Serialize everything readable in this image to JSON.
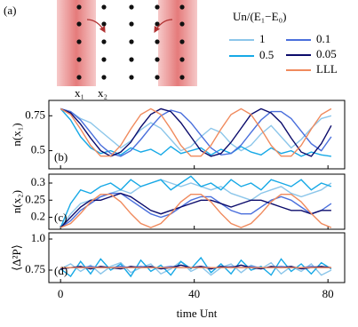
{
  "diagram": {
    "label": "(a)",
    "sites": [
      "x₁",
      "x₂"
    ]
  },
  "chart_data": [
    {
      "type": "line",
      "panel_label": "(b)",
      "ylabel": "n(x₁)",
      "legend_title": "Un/(E₁−E₀)",
      "x": [
        0,
        3,
        6,
        9,
        12,
        15,
        18,
        21,
        24,
        27,
        30,
        33,
        36,
        39,
        42,
        45,
        48,
        51,
        54,
        57,
        60,
        63,
        66,
        69,
        72,
        75,
        78,
        81
      ],
      "xlim": [
        -3.5,
        85
      ],
      "xticks": [
        0,
        40,
        80
      ],
      "ylim": [
        0.37,
        0.86
      ],
      "yticks": [
        0.5,
        0.75
      ],
      "series": [
        {
          "name": "1",
          "color": "#8cc6ea",
          "values": [
            0.8,
            0.78,
            0.73,
            0.7,
            0.64,
            0.58,
            0.52,
            0.57,
            0.65,
            0.7,
            0.66,
            0.58,
            0.5,
            0.53,
            0.6,
            0.66,
            0.63,
            0.55,
            0.5,
            0.54,
            0.62,
            0.68,
            0.6,
            0.52,
            0.58,
            0.66,
            0.73,
            0.75
          ]
        },
        {
          "name": "0.5",
          "color": "#17a9e6",
          "values": [
            0.8,
            0.72,
            0.6,
            0.52,
            0.48,
            0.5,
            0.47,
            0.52,
            0.49,
            0.51,
            0.47,
            0.53,
            0.48,
            0.5,
            0.52,
            0.47,
            0.51,
            0.48,
            0.53,
            0.49,
            0.47,
            0.52,
            0.48,
            0.5,
            0.46,
            0.49,
            0.47,
            0.46
          ]
        },
        {
          "name": "0.1",
          "color": "#4a6fdc",
          "values": [
            0.8,
            0.78,
            0.72,
            0.63,
            0.54,
            0.48,
            0.46,
            0.5,
            0.58,
            0.67,
            0.75,
            0.79,
            0.77,
            0.7,
            0.61,
            0.52,
            0.47,
            0.48,
            0.54,
            0.63,
            0.72,
            0.78,
            0.78,
            0.73,
            0.64,
            0.55,
            0.5,
            0.6
          ]
        },
        {
          "name": "0.05",
          "color": "#0b0b6b",
          "values": [
            0.8,
            0.77,
            0.69,
            0.59,
            0.5,
            0.46,
            0.49,
            0.56,
            0.67,
            0.76,
            0.8,
            0.78,
            0.7,
            0.6,
            0.5,
            0.46,
            0.48,
            0.56,
            0.66,
            0.76,
            0.8,
            0.77,
            0.7,
            0.59,
            0.49,
            0.46,
            0.55,
            0.68
          ]
        },
        {
          "name": "LLL",
          "color": "#f08a5d",
          "values": [
            0.8,
            0.759,
            0.655,
            0.538,
            0.461,
            0.461,
            0.538,
            0.655,
            0.759,
            0.8,
            0.759,
            0.655,
            0.538,
            0.461,
            0.461,
            0.538,
            0.655,
            0.759,
            0.8,
            0.759,
            0.655,
            0.538,
            0.461,
            0.461,
            0.538,
            0.655,
            0.759,
            0.8
          ]
        }
      ]
    },
    {
      "type": "line",
      "panel_label": "(c)",
      "ylabel": "n(x₂)",
      "x": [
        0,
        3,
        6,
        9,
        12,
        15,
        18,
        21,
        24,
        27,
        30,
        33,
        36,
        39,
        42,
        45,
        48,
        51,
        54,
        57,
        60,
        63,
        66,
        69,
        72,
        75,
        78,
        81
      ],
      "xlim": [
        -3.5,
        85
      ],
      "xticks": [
        0,
        40,
        80
      ],
      "ylim": [
        0.165,
        0.326
      ],
      "yticks": [
        0.2,
        0.25,
        0.3
      ],
      "series": [
        {
          "name": "1",
          "color": "#8cc6ea",
          "values": [
            0.17,
            0.21,
            0.24,
            0.25,
            0.26,
            0.27,
            0.28,
            0.27,
            0.29,
            0.3,
            0.31,
            0.3,
            0.29,
            0.3,
            0.29,
            0.28,
            0.29,
            0.27,
            0.26,
            0.25,
            0.27,
            0.28,
            0.29,
            0.27,
            0.26,
            0.27,
            0.28,
            0.3
          ]
        },
        {
          "name": "0.5",
          "color": "#17a9e6",
          "values": [
            0.17,
            0.24,
            0.28,
            0.27,
            0.29,
            0.3,
            0.28,
            0.31,
            0.29,
            0.3,
            0.31,
            0.28,
            0.3,
            0.32,
            0.29,
            0.3,
            0.28,
            0.31,
            0.29,
            0.3,
            0.28,
            0.31,
            0.3,
            0.29,
            0.31,
            0.28,
            0.3,
            0.29
          ]
        },
        {
          "name": "0.1",
          "color": "#4a6fdc",
          "values": [
            0.17,
            0.19,
            0.22,
            0.24,
            0.26,
            0.27,
            0.27,
            0.25,
            0.23,
            0.21,
            0.2,
            0.21,
            0.23,
            0.25,
            0.26,
            0.26,
            0.24,
            0.22,
            0.21,
            0.21,
            0.23,
            0.25,
            0.26,
            0.25,
            0.23,
            0.21,
            0.22,
            0.24
          ]
        },
        {
          "name": "0.05",
          "color": "#0b0b6b",
          "values": [
            0.17,
            0.2,
            0.23,
            0.25,
            0.25,
            0.26,
            0.27,
            0.26,
            0.24,
            0.22,
            0.21,
            0.22,
            0.23,
            0.24,
            0.25,
            0.25,
            0.24,
            0.23,
            0.24,
            0.25,
            0.25,
            0.24,
            0.23,
            0.22,
            0.22,
            0.21,
            0.22,
            0.22
          ]
        },
        {
          "name": "LLL",
          "color": "#f08a5d",
          "values": [
            0.17,
            0.182,
            0.211,
            0.245,
            0.267,
            0.267,
            0.245,
            0.211,
            0.182,
            0.17,
            0.182,
            0.211,
            0.245,
            0.267,
            0.267,
            0.245,
            0.211,
            0.182,
            0.17,
            0.182,
            0.211,
            0.245,
            0.267,
            0.267,
            0.245,
            0.211,
            0.182,
            0.17
          ]
        }
      ]
    },
    {
      "type": "line",
      "panel_label": "(d)",
      "ylabel": "⟨Δ²P⟩",
      "xlabel": "time Unt",
      "x": [
        0,
        3,
        6,
        9,
        12,
        15,
        18,
        21,
        24,
        27,
        30,
        33,
        36,
        39,
        42,
        45,
        48,
        51,
        54,
        57,
        60,
        63,
        66,
        69,
        72,
        75,
        78,
        81
      ],
      "xlim": [
        -3.5,
        85
      ],
      "xticks": [
        0,
        40,
        80
      ],
      "ylim": [
        0.65,
        1.05
      ],
      "yticks": [
        0.75,
        {
          "value": 1,
          "label": "1.0"
        }
      ],
      "series": [
        {
          "name": "1",
          "color": "#8cc6ea",
          "values": [
            0.76,
            0.8,
            0.74,
            0.79,
            0.72,
            0.78,
            0.81,
            0.73,
            0.77,
            0.8,
            0.72,
            0.76,
            0.82,
            0.74,
            0.78,
            0.71,
            0.77,
            0.8,
            0.73,
            0.79,
            0.76,
            0.81,
            0.72,
            0.78,
            0.74,
            0.8,
            0.71,
            0.75
          ]
        },
        {
          "name": "0.5",
          "color": "#17a9e6",
          "values": [
            0.76,
            0.7,
            0.82,
            0.72,
            0.84,
            0.75,
            0.8,
            0.7,
            0.83,
            0.74,
            0.79,
            0.71,
            0.82,
            0.76,
            0.85,
            0.73,
            0.8,
            0.72,
            0.83,
            0.75,
            0.78,
            0.71,
            0.84,
            0.74,
            0.8,
            0.72,
            0.81,
            0.76
          ]
        },
        {
          "name": "0.1",
          "color": "#4a6fdc",
          "values": [
            0.76,
            0.77,
            0.77,
            0.78,
            0.77,
            0.77,
            0.78,
            0.77,
            0.78,
            0.77,
            0.77,
            0.78,
            0.77,
            0.77,
            0.78,
            0.77,
            0.77,
            0.78,
            0.77,
            0.78,
            0.77,
            0.77,
            0.78,
            0.77,
            0.77,
            0.78,
            0.77,
            0.77
          ]
        },
        {
          "name": "0.05",
          "color": "#0b0b6b",
          "values": [
            0.76,
            0.77,
            0.78,
            0.76,
            0.78,
            0.77,
            0.76,
            0.78,
            0.77,
            0.78,
            0.76,
            0.77,
            0.79,
            0.77,
            0.78,
            0.76,
            0.78,
            0.77,
            0.79,
            0.77,
            0.76,
            0.78,
            0.77,
            0.78,
            0.76,
            0.77,
            0.78,
            0.77
          ]
        },
        {
          "name": "LLL",
          "color": "#f08a5d",
          "values": [
            0.77,
            0.77,
            0.77,
            0.77,
            0.77,
            0.77,
            0.77,
            0.77,
            0.77,
            0.77,
            0.77,
            0.77,
            0.77,
            0.77,
            0.77,
            0.77,
            0.77,
            0.77,
            0.77,
            0.77,
            0.77,
            0.77,
            0.77,
            0.77,
            0.77,
            0.77,
            0.77,
            0.77
          ]
        }
      ]
    }
  ]
}
